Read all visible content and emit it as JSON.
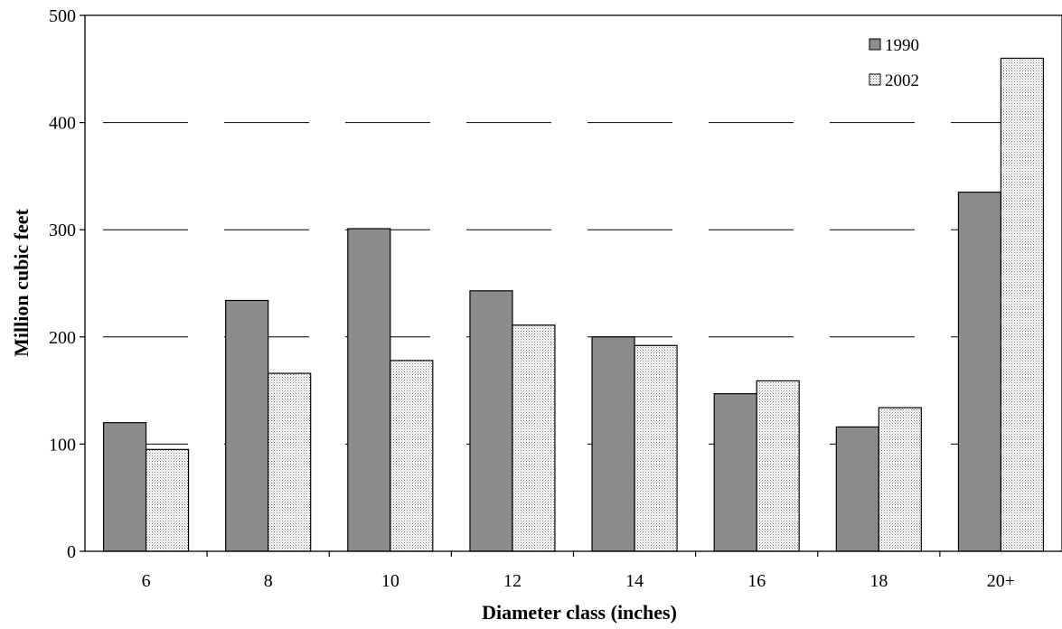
{
  "chart_data": {
    "type": "bar",
    "title": "",
    "xlabel": "Diameter class (inches)",
    "ylabel": "Million cubic feet",
    "categories": [
      "6",
      "8",
      "10",
      "12",
      "14",
      "16",
      "18",
      "20+"
    ],
    "series": [
      {
        "name": "1990",
        "color": "#8c8c8c",
        "pattern": "solid",
        "values": [
          120,
          234,
          301,
          243,
          200,
          147,
          116,
          335
        ]
      },
      {
        "name": "2002",
        "color": "#ffffff",
        "pattern": "dotted",
        "values": [
          95,
          166,
          178,
          211,
          192,
          159,
          134,
          460
        ]
      }
    ],
    "ylim": [
      0,
      500
    ],
    "yticks": [
      "0",
      "100",
      "200",
      "300",
      "400",
      "500"
    ],
    "grid": "horizontal dashed",
    "legend_position": "top-right"
  }
}
